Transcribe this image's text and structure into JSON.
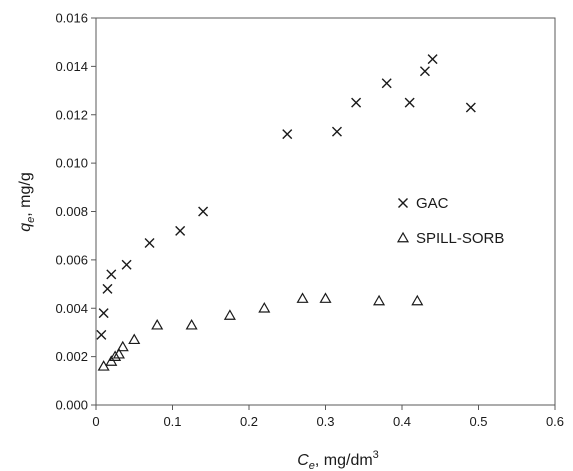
{
  "chart_data": {
    "type": "scatter",
    "title": "",
    "xlabel": {
      "symbol": "C",
      "subscript": "e",
      "unit": ", mg/dm",
      "superscript": "3"
    },
    "ylabel": {
      "symbol": "q",
      "subscript": "e",
      "unit": ", mg/g"
    },
    "xlim": [
      0,
      0.6
    ],
    "ylim": [
      0,
      0.016
    ],
    "xticks": [
      "0",
      "0.1",
      "0.2",
      "0.3",
      "0.4",
      "0.5",
      "0.6"
    ],
    "yticks": [
      "0.000",
      "0.002",
      "0.004",
      "0.006",
      "0.008",
      "0.010",
      "0.012",
      "0.014",
      "0.016"
    ],
    "grid": false,
    "legend_position": "right",
    "series": [
      {
        "name": "GAC",
        "marker": "x",
        "color": "#1a1a1a",
        "points": [
          [
            0.007,
            0.0029
          ],
          [
            0.01,
            0.0038
          ],
          [
            0.015,
            0.0048
          ],
          [
            0.02,
            0.0054
          ],
          [
            0.04,
            0.0058
          ],
          [
            0.07,
            0.0067
          ],
          [
            0.11,
            0.0072
          ],
          [
            0.14,
            0.008
          ],
          [
            0.25,
            0.0112
          ],
          [
            0.315,
            0.0113
          ],
          [
            0.34,
            0.0125
          ],
          [
            0.38,
            0.0133
          ],
          [
            0.41,
            0.0125
          ],
          [
            0.43,
            0.0138
          ],
          [
            0.44,
            0.0143
          ],
          [
            0.49,
            0.0123
          ]
        ]
      },
      {
        "name": "SPILL-SORB",
        "marker": "triangle",
        "color": "#1a1a1a",
        "points": [
          [
            0.01,
            0.0016
          ],
          [
            0.02,
            0.0018
          ],
          [
            0.025,
            0.002
          ],
          [
            0.03,
            0.0021
          ],
          [
            0.035,
            0.0024
          ],
          [
            0.05,
            0.0027
          ],
          [
            0.08,
            0.0033
          ],
          [
            0.125,
            0.0033
          ],
          [
            0.175,
            0.0037
          ],
          [
            0.22,
            0.004
          ],
          [
            0.27,
            0.0044
          ],
          [
            0.3,
            0.0044
          ],
          [
            0.37,
            0.0043
          ],
          [
            0.42,
            0.0043
          ]
        ]
      }
    ]
  }
}
